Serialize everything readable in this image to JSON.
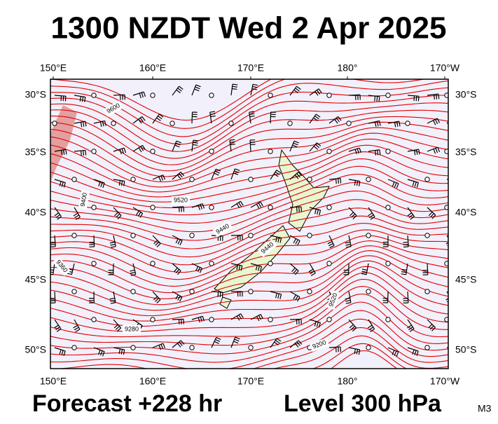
{
  "header": {
    "title": "1300 NZDT Wed 2 Apr 2025"
  },
  "map": {
    "longitude_labels": [
      "150°E",
      "160°E",
      "170°E",
      "180°",
      "170°W"
    ],
    "latitude_labels": [
      "30°S",
      "35°S",
      "40°S",
      "45°S",
      "50°S"
    ],
    "contour_labels": [
      "9600",
      "9520",
      "9440",
      "9400",
      "9360",
      "9280",
      "9200",
      "9440",
      "9520"
    ]
  },
  "footer": {
    "forecast": "Forecast +228 hr",
    "level": "Level 300 hPa",
    "model": "M3"
  }
}
